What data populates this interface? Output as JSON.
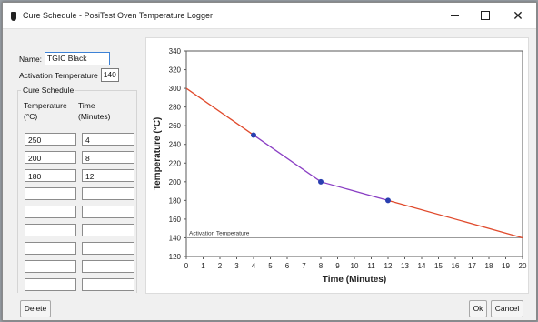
{
  "window": {
    "title": "Cure Schedule - PosiTest Oven Temperature Logger",
    "minimize_label": "–",
    "close_label": "✕"
  },
  "form": {
    "name_label": "Name:",
    "name_value": "TGIC Black",
    "activation_label": "Activation Temperature",
    "activation_value": "140"
  },
  "cure_schedule": {
    "title": "Cure Schedule",
    "temp_header_line1": "Temperature",
    "temp_header_line2": "(°C)",
    "time_header_line1": "Time",
    "time_header_line2": "(Minutes)",
    "rows": [
      {
        "temperature": "250",
        "time": "4"
      },
      {
        "temperature": "200",
        "time": "8"
      },
      {
        "temperature": "180",
        "time": "12"
      },
      {
        "temperature": "",
        "time": ""
      },
      {
        "temperature": "",
        "time": ""
      },
      {
        "temperature": "",
        "time": ""
      },
      {
        "temperature": "",
        "time": ""
      },
      {
        "temperature": "",
        "time": ""
      },
      {
        "temperature": "",
        "time": ""
      }
    ]
  },
  "buttons": {
    "delete": "Delete",
    "ok": "Ok",
    "cancel": "Cancel"
  },
  "chart_data": {
    "type": "line",
    "xlabel": "Time (Minutes)",
    "ylabel": "Temperature (°C)",
    "xlim": [
      0,
      20
    ],
    "ylim": [
      120,
      340
    ],
    "x_ticks": [
      0,
      1,
      2,
      3,
      4,
      5,
      6,
      7,
      8,
      9,
      10,
      11,
      12,
      13,
      14,
      15,
      16,
      17,
      18,
      19,
      20
    ],
    "y_ticks": [
      120,
      140,
      160,
      180,
      200,
      220,
      240,
      260,
      280,
      300,
      320,
      340
    ],
    "grid": false,
    "series": [
      {
        "name": "",
        "color": "#e04a2c",
        "x": [
          0,
          4
        ],
        "y": [
          300,
          250
        ]
      },
      {
        "name": "",
        "color": "#8a3fc4",
        "x": [
          4,
          8,
          12
        ],
        "y": [
          250,
          200,
          180
        ]
      },
      {
        "name": "",
        "color": "#e04a2c",
        "x": [
          12,
          20
        ],
        "y": [
          180,
          140
        ]
      }
    ],
    "points": {
      "color": "#2a3fb0",
      "x": [
        4,
        8,
        12
      ],
      "y": [
        250,
        200,
        180
      ]
    },
    "reference_line": {
      "label": "Activation Temperature",
      "y": 140,
      "color": "#9b9b9b"
    }
  }
}
